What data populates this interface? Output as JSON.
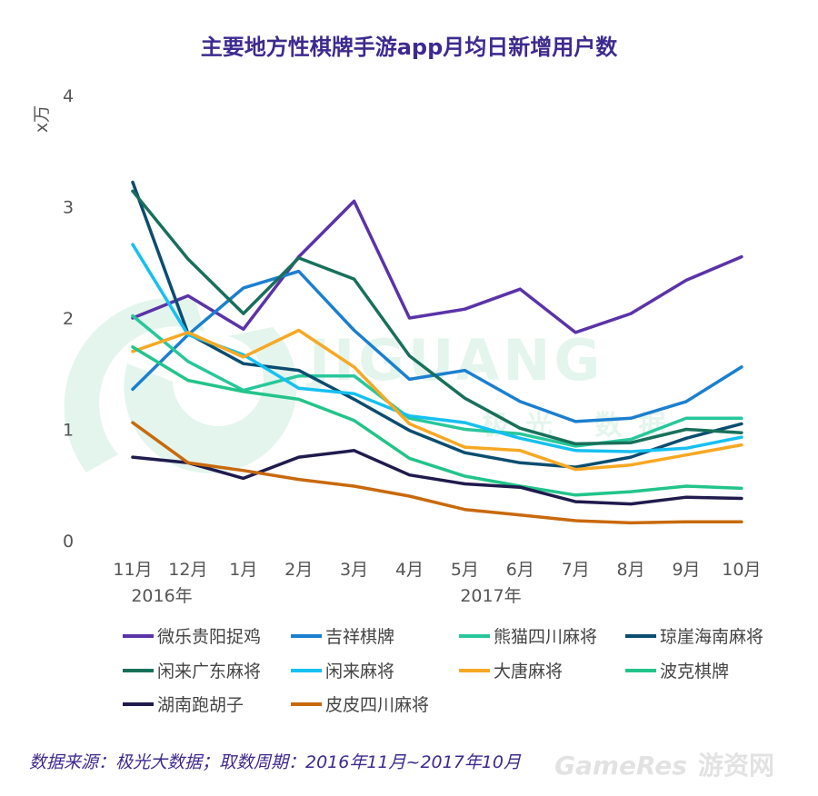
{
  "chart_data": {
    "type": "line",
    "title": "主要地方性棋牌手游app月均日新增用户数",
    "ylabel": "x万",
    "xlabel": "",
    "ylim": [
      0,
      4
    ],
    "yticks": [
      "0",
      "1",
      "2",
      "3",
      "4"
    ],
    "categories": [
      "11月",
      "12月",
      "1月",
      "2月",
      "3月",
      "4月",
      "5月",
      "6月",
      "7月",
      "8月",
      "9月",
      "10月"
    ],
    "year_labels": [
      "2016年",
      "2017年"
    ],
    "series": [
      {
        "name": "微乐贵阳捉鸡",
        "color": "#5a33a8",
        "values": [
          2.0,
          2.2,
          1.9,
          2.55,
          3.05,
          2.0,
          2.08,
          2.26,
          1.87,
          2.04,
          2.34,
          2.55
        ]
      },
      {
        "name": "吉祥棋牌",
        "color": "#1b7fcf",
        "values": [
          1.36,
          1.85,
          2.27,
          2.42,
          1.89,
          1.45,
          1.53,
          1.25,
          1.07,
          1.1,
          1.25,
          1.56
        ]
      },
      {
        "name": "熊猫四川麻将",
        "color": "#28c79a",
        "values": [
          2.02,
          1.61,
          1.35,
          1.48,
          1.48,
          1.1,
          1.0,
          0.96,
          0.85,
          0.91,
          1.1,
          1.1
        ]
      },
      {
        "name": "琼崖海南麻将",
        "color": "#0b4d70",
        "values": [
          3.22,
          1.86,
          1.59,
          1.53,
          1.27,
          0.99,
          0.79,
          0.7,
          0.66,
          0.75,
          0.92,
          1.05
        ]
      },
      {
        "name": "闲来广东麻将",
        "color": "#17705a",
        "values": [
          3.14,
          2.53,
          2.04,
          2.54,
          2.35,
          1.66,
          1.28,
          1.01,
          0.87,
          0.88,
          1.0,
          0.97
        ]
      },
      {
        "name": "闲来麻将",
        "color": "#16c0f0",
        "values": [
          2.66,
          1.85,
          1.67,
          1.37,
          1.32,
          1.12,
          1.06,
          0.92,
          0.81,
          0.8,
          0.83,
          0.93
        ]
      },
      {
        "name": "大唐麻将",
        "color": "#f7a823",
        "values": [
          1.7,
          1.87,
          1.65,
          1.89,
          1.56,
          1.05,
          0.84,
          0.81,
          0.64,
          0.68,
          0.77,
          0.86
        ]
      },
      {
        "name": "波克棋牌",
        "color": "#22c48a",
        "values": [
          1.74,
          1.44,
          1.34,
          1.27,
          1.08,
          0.74,
          0.58,
          0.49,
          0.41,
          0.44,
          0.49,
          0.47
        ]
      },
      {
        "name": "湖南跑胡子",
        "color": "#1f1b4d",
        "values": [
          0.75,
          0.7,
          0.56,
          0.75,
          0.81,
          0.59,
          0.51,
          0.48,
          0.35,
          0.33,
          0.39,
          0.38
        ]
      },
      {
        "name": "皮皮四川麻将",
        "color": "#c8690d",
        "values": [
          1.06,
          0.7,
          0.63,
          0.55,
          0.49,
          0.4,
          0.28,
          0.23,
          0.18,
          0.16,
          0.17,
          0.17
        ]
      }
    ]
  },
  "source_note": "数据来源：极光大数据；取数周期：2016年11月~2017年10月",
  "watermark": {
    "text": "JIGUANG",
    "subtext": "极光 数据",
    "corner_brand": "GameRes",
    "corner_brand_cn": "游资网"
  }
}
